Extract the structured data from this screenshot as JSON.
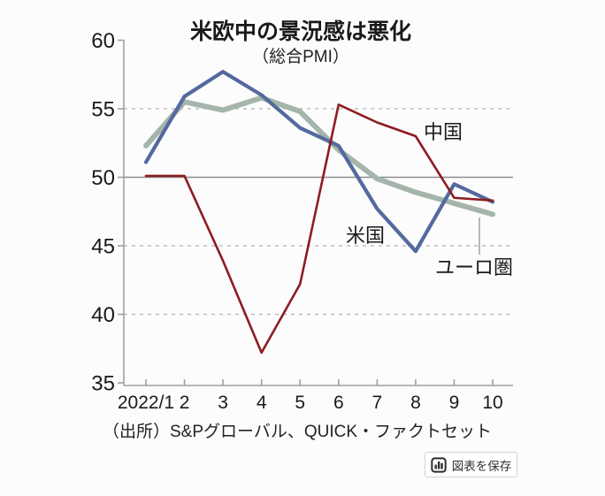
{
  "chart_data": {
    "type": "line",
    "title": "米欧中の景況感は悪化",
    "subtitle": "（総合PMI）",
    "source": "（出所）S&Pグローバル、QUICK・ファクトセット",
    "categories": [
      "2022/1",
      "2",
      "3",
      "4",
      "5",
      "6",
      "7",
      "8",
      "9",
      "10"
    ],
    "ylim": [
      35,
      60
    ],
    "yticks": [
      60,
      55,
      50,
      45,
      40,
      35
    ],
    "solid_gridline_at": 50,
    "dashed_gridlines_at": [
      55,
      45,
      40
    ],
    "grid": "horizontal-only",
    "legend_position": "inline-labels",
    "series": [
      {
        "id": "eurozone",
        "name": "ユーロ圏",
        "color": "#a4b5ab",
        "values": [
          52.3,
          55.5,
          54.9,
          55.8,
          54.8,
          52.0,
          49.9,
          48.9,
          48.1,
          47.3
        ]
      },
      {
        "id": "us",
        "name": "米国",
        "color": "#54699e",
        "values": [
          51.1,
          55.9,
          57.7,
          56.0,
          53.6,
          52.3,
          47.7,
          44.6,
          49.5,
          48.2
        ]
      },
      {
        "id": "china",
        "name": "中国",
        "color": "#8e1c20",
        "values": [
          50.1,
          50.1,
          43.9,
          37.2,
          42.2,
          55.3,
          54.0,
          53.0,
          48.5,
          48.3
        ]
      }
    ]
  },
  "save_button": {
    "label": "図表を保存",
    "icon": "bar-chart-icon"
  },
  "colors": {
    "us_line": "#54699e",
    "eurozone_line": "#a4b5ab",
    "china_line": "#8e1c20",
    "grid_dashed": "#b3b3b3",
    "grid_solid": "#8c8c8c",
    "axis": "#a0a0a0",
    "text": "#1a1a1a"
  }
}
